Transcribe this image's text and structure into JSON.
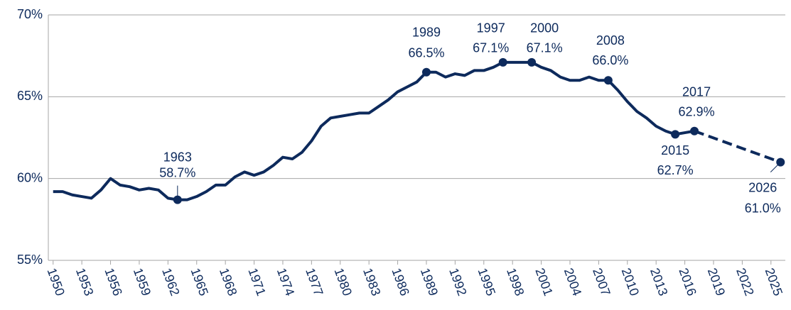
{
  "chart_data": {
    "type": "line",
    "xlim": [
      1949.5,
      2026.5
    ],
    "xticks": [
      1950,
      1953,
      1956,
      1959,
      1962,
      1965,
      1968,
      1971,
      1974,
      1977,
      1980,
      1983,
      1986,
      1989,
      1992,
      1995,
      1998,
      2001,
      2004,
      2007,
      2010,
      2013,
      2016,
      2019,
      2022,
      2025
    ],
    "ylim": [
      55,
      70
    ],
    "yticks": [
      {
        "value": 55,
        "label": "55%"
      },
      {
        "value": 60,
        "label": "60%"
      },
      {
        "value": 65,
        "label": "65%"
      },
      {
        "value": 70,
        "label": "70%"
      }
    ],
    "grid": true,
    "series": [
      {
        "color": "#0d2a5c",
        "style": "solid",
        "x": [
          1950,
          1951,
          1952,
          1953,
          1954,
          1955,
          1956,
          1957,
          1958,
          1959,
          1960,
          1961,
          1962,
          1963,
          1964,
          1965,
          1966,
          1967,
          1968,
          1969,
          1970,
          1971,
          1972,
          1973,
          1974,
          1975,
          1976,
          1977,
          1978,
          1979,
          1980,
          1981,
          1982,
          1983,
          1984,
          1985,
          1986,
          1987,
          1988,
          1989,
          1990,
          1991,
          1992,
          1993,
          1994,
          1995,
          1996,
          1997,
          1998,
          1999,
          2000,
          2001,
          2002,
          2003,
          2004,
          2005,
          2006,
          2007,
          2008,
          2009,
          2010,
          2011,
          2012,
          2013,
          2014,
          2015,
          2016,
          2017
        ],
        "values": [
          59.2,
          59.2,
          59.0,
          58.9,
          58.8,
          59.3,
          60.0,
          59.6,
          59.5,
          59.3,
          59.4,
          59.3,
          58.8,
          58.7,
          58.7,
          58.9,
          59.2,
          59.6,
          59.6,
          60.1,
          60.4,
          60.2,
          60.4,
          60.8,
          61.3,
          61.2,
          61.6,
          62.3,
          63.2,
          63.7,
          63.8,
          63.9,
          64.0,
          64.0,
          64.4,
          64.8,
          65.3,
          65.6,
          65.9,
          66.5,
          66.5,
          66.2,
          66.4,
          66.3,
          66.6,
          66.6,
          66.8,
          67.1,
          67.1,
          67.1,
          67.1,
          66.8,
          66.6,
          66.2,
          66.0,
          66.0,
          66.2,
          66.0,
          66.0,
          65.4,
          64.7,
          64.1,
          63.7,
          63.2,
          62.9,
          62.7,
          62.8,
          62.9
        ]
      },
      {
        "color": "#0d2a5c",
        "style": "dashed",
        "x": [
          2017,
          2026
        ],
        "values": [
          62.9,
          61.0
        ]
      }
    ],
    "annotations": [
      {
        "x": 1963,
        "value": 58.7,
        "year": "1963",
        "label": "58.7%"
      },
      {
        "x": 1989,
        "value": 66.5,
        "year": "1989",
        "label": "66.5%"
      },
      {
        "x": 1997,
        "value": 67.1,
        "year": "1997",
        "label": "67.1%"
      },
      {
        "x": 2000,
        "value": 67.1,
        "year": "2000",
        "label": "67.1%"
      },
      {
        "x": 2008,
        "value": 66.0,
        "year": "2008",
        "label": "66.0%"
      },
      {
        "x": 2015,
        "value": 62.7,
        "year": "2015",
        "label": "62.7%"
      },
      {
        "x": 2017,
        "value": 62.9,
        "year": "2017",
        "label": "62.9%"
      },
      {
        "x": 2026,
        "value": 61.0,
        "year": "2026",
        "label": "61.0%"
      }
    ]
  }
}
